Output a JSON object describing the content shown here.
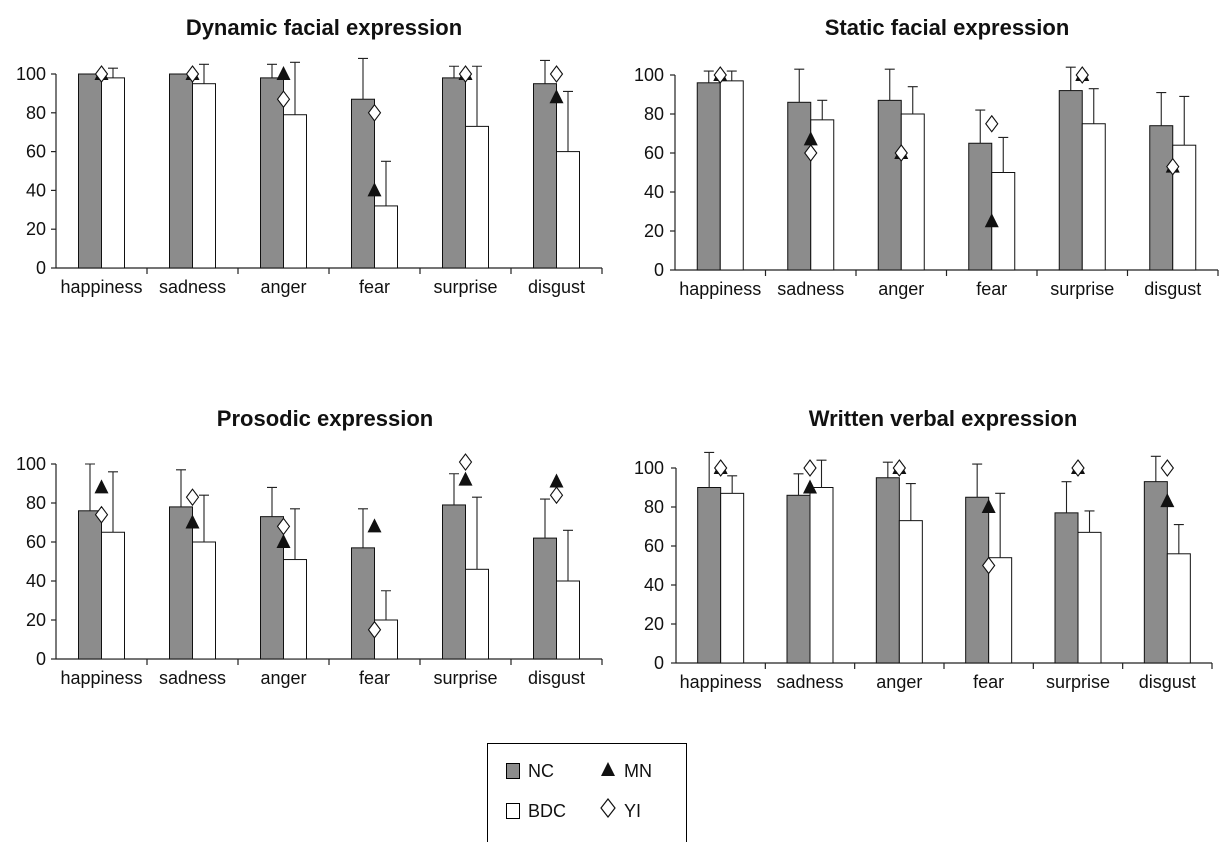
{
  "legend": {
    "nc": "NC",
    "mn": "MN",
    "bdc": "BDC",
    "yi": "YI"
  },
  "colors": {
    "nc_bar": "#8c8c8c",
    "bdc_bar": "#ffffff",
    "mn_marker": "#111111",
    "yi_marker": "#ffffff"
  },
  "chart_data": [
    {
      "type": "bar",
      "title": "Dynamic facial expression",
      "categories": [
        "happiness",
        "sadness",
        "anger",
        "fear",
        "surprise",
        "disgust"
      ],
      "ylim": [
        0,
        100
      ],
      "yticks": [
        "0",
        "20",
        "40",
        "60",
        "80",
        "100"
      ],
      "series": [
        {
          "name": "NC",
          "kind": "bar",
          "values": [
            100,
            100,
            98,
            87,
            98,
            95
          ],
          "error": [
            0,
            0,
            7,
            21,
            6,
            12
          ]
        },
        {
          "name": "BDC",
          "kind": "bar",
          "values": [
            98,
            95,
            79,
            32,
            73,
            60
          ],
          "error": [
            5,
            10,
            27,
            23,
            31,
            31
          ]
        },
        {
          "name": "MN",
          "kind": "marker",
          "values": [
            100,
            100,
            100,
            40,
            100,
            88
          ]
        },
        {
          "name": "YI",
          "kind": "marker",
          "values": [
            100,
            100,
            87,
            80,
            100,
            100
          ]
        }
      ]
    },
    {
      "type": "bar",
      "title": "Static facial expression",
      "categories": [
        "happiness",
        "sadness",
        "anger",
        "fear",
        "surprise",
        "disgust"
      ],
      "ylim": [
        0,
        100
      ],
      "yticks": [
        "0",
        "20",
        "40",
        "60",
        "80",
        "100"
      ],
      "series": [
        {
          "name": "NC",
          "kind": "bar",
          "values": [
            96,
            86,
            87,
            65,
            92,
            74
          ],
          "error": [
            6,
            17,
            16,
            17,
            12,
            17
          ]
        },
        {
          "name": "BDC",
          "kind": "bar",
          "values": [
            97,
            77,
            80,
            50,
            75,
            64
          ],
          "error": [
            5,
            10,
            14,
            18,
            18,
            25
          ]
        },
        {
          "name": "MN",
          "kind": "marker",
          "values": [
            100,
            67,
            60,
            25,
            100,
            53
          ]
        },
        {
          "name": "YI",
          "kind": "marker",
          "values": [
            100,
            60,
            60,
            75,
            100,
            53
          ]
        }
      ]
    },
    {
      "type": "bar",
      "title": "Prosodic expression",
      "categories": [
        "happiness",
        "sadness",
        "anger",
        "fear",
        "surprise",
        "disgust"
      ],
      "ylim": [
        0,
        100
      ],
      "yticks": [
        "0",
        "20",
        "40",
        "60",
        "80",
        "100"
      ],
      "series": [
        {
          "name": "NC",
          "kind": "bar",
          "values": [
            76,
            78,
            73,
            57,
            79,
            62
          ],
          "error": [
            24,
            19,
            15,
            20,
            16,
            20
          ]
        },
        {
          "name": "BDC",
          "kind": "bar",
          "values": [
            65,
            60,
            51,
            20,
            46,
            40
          ],
          "error": [
            31,
            24,
            26,
            15,
            37,
            26
          ]
        },
        {
          "name": "MN",
          "kind": "marker",
          "values": [
            88,
            70,
            60,
            68,
            92,
            91
          ]
        },
        {
          "name": "YI",
          "kind": "marker",
          "values": [
            74,
            83,
            68,
            15,
            101,
            84
          ]
        }
      ]
    },
    {
      "type": "bar",
      "title": "Written verbal expression",
      "categories": [
        "happiness",
        "sadness",
        "anger",
        "fear",
        "surprise",
        "disgust"
      ],
      "ylim": [
        0,
        100
      ],
      "yticks": [
        "0",
        "20",
        "40",
        "60",
        "80",
        "100"
      ],
      "series": [
        {
          "name": "NC",
          "kind": "bar",
          "values": [
            90,
            86,
            95,
            85,
            77,
            93
          ],
          "error": [
            18,
            11,
            8,
            17,
            16,
            13
          ]
        },
        {
          "name": "BDC",
          "kind": "bar",
          "values": [
            87,
            90,
            73,
            54,
            67,
            56
          ],
          "error": [
            9,
            14,
            19,
            33,
            11,
            15
          ]
        },
        {
          "name": "MN",
          "kind": "marker",
          "values": [
            100,
            90,
            100,
            80,
            100,
            83
          ]
        },
        {
          "name": "YI",
          "kind": "marker",
          "values": [
            100,
            100,
            100,
            50,
            100,
            100
          ]
        }
      ]
    }
  ]
}
